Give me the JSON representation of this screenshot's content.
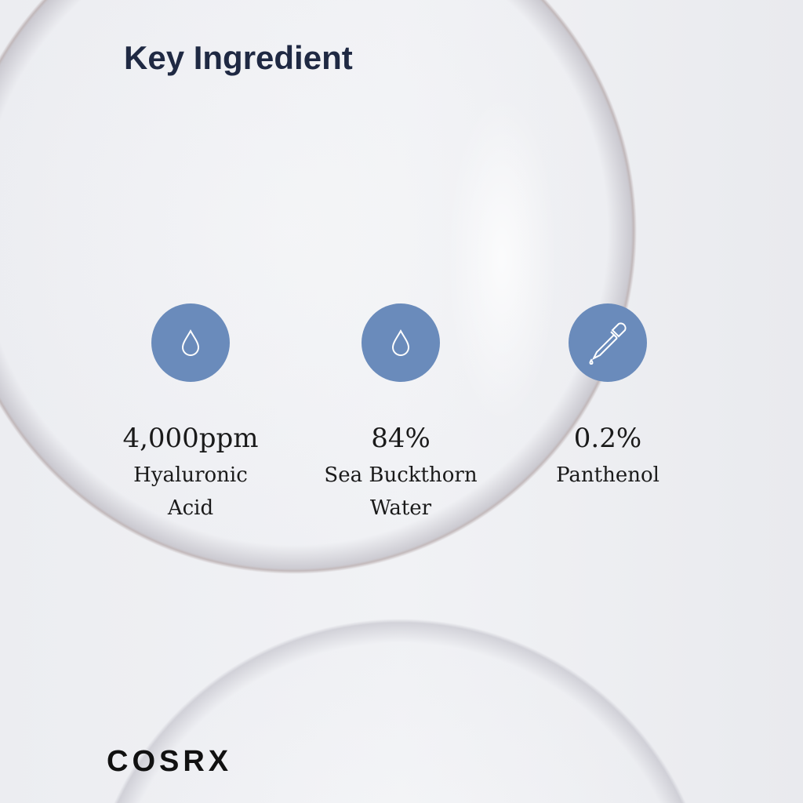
{
  "title": "Key Ingredient",
  "accent_color": "#6a8bbb",
  "ingredients": [
    {
      "icon": "water-drop-icon",
      "value": "4,000ppm",
      "name_line1": "Hyaluronic",
      "name_line2": "Acid"
    },
    {
      "icon": "water-drop-icon",
      "value": "84%",
      "name_line1": "Sea Buckthorn",
      "name_line2": "Water"
    },
    {
      "icon": "dropper-icon",
      "value": "0.2%",
      "name_line1": "Panthenol",
      "name_line2": ""
    }
  ],
  "brand": "COSRX"
}
